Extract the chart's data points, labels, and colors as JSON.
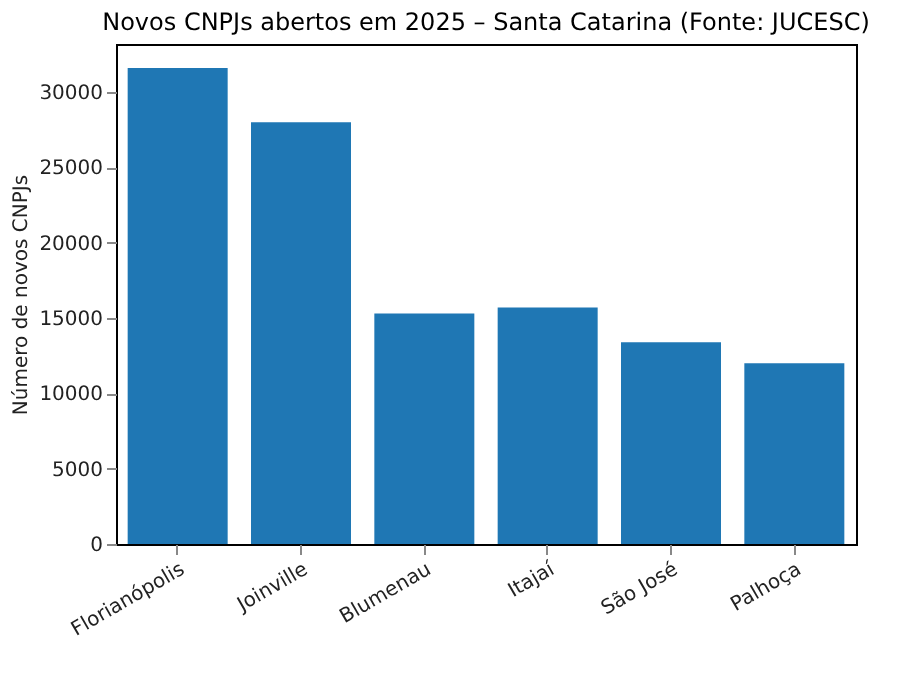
{
  "chart_data": {
    "type": "bar",
    "title": "Novos CNPJs abertos em 2025 – Santa Catarina (Fonte: JUCESC)",
    "ylabel": "Número de novos CNPJs",
    "categories": [
      "Florianópolis",
      "Joinville",
      "Blumenau",
      "Itajaí",
      "São José",
      "Palhoça"
    ],
    "values": [
      31600,
      28000,
      15300,
      15700,
      13400,
      12000
    ],
    "color": "#1f77b4",
    "ylim": [
      0,
      33200
    ],
    "yticks": [
      0,
      5000,
      10000,
      15000,
      20000,
      25000,
      30000
    ],
    "grid": false
  }
}
